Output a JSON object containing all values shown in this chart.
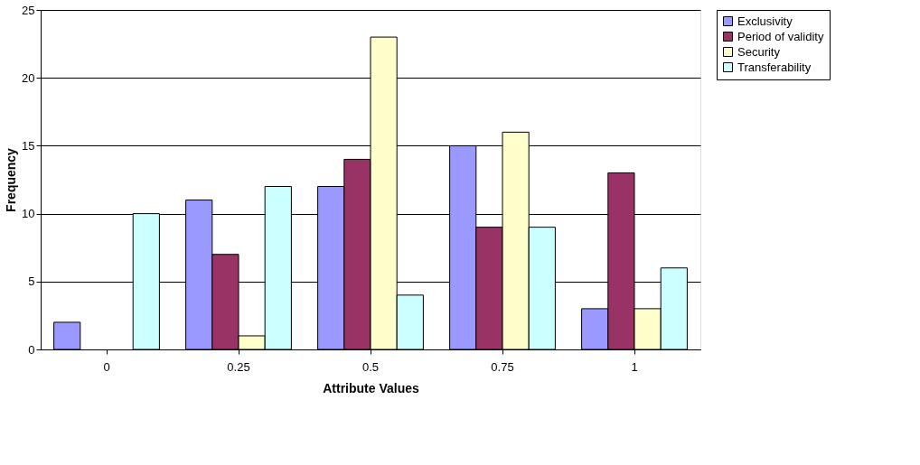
{
  "chart_data": {
    "type": "bar",
    "xlabel": "Attribute Values",
    "ylabel": "Frequency",
    "categories": [
      "0",
      "0.25",
      "0.5",
      "0.75",
      "1"
    ],
    "series": [
      {
        "name": "Exclusivity",
        "color": "#9999ff",
        "values": [
          2,
          11,
          12,
          15,
          3
        ]
      },
      {
        "name": "Period of validity",
        "color": "#993366",
        "values": [
          null,
          7,
          14,
          9,
          13
        ]
      },
      {
        "name": "Security",
        "color": "#ffffcc",
        "values": [
          null,
          1,
          23,
          16,
          3
        ]
      },
      {
        "name": "Transferability",
        "color": "#ccffff",
        "values": [
          10,
          12,
          4,
          9,
          6
        ]
      }
    ],
    "ylim": [
      0,
      25
    ],
    "yticks": [
      0,
      5,
      10,
      15,
      20,
      25
    ],
    "grid": "y",
    "legend": "right"
  }
}
